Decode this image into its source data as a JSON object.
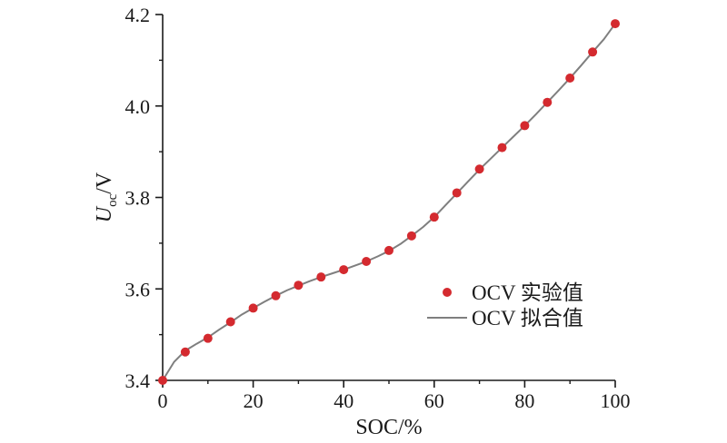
{
  "chart_data": {
    "type": "scatter",
    "xlabel": "SOC/%",
    "ylabel": {
      "main": "U",
      "sub": "oc",
      "unit": "/V"
    },
    "xlim": [
      0,
      100
    ],
    "ylim": [
      3.4,
      4.2
    ],
    "xticks": [
      0,
      20,
      40,
      60,
      80,
      100
    ],
    "yticks": [
      3.4,
      3.6,
      3.8,
      4.0,
      4.2
    ],
    "xtick_labels": [
      "0",
      "20",
      "40",
      "60",
      "80",
      "100"
    ],
    "ytick_labels": [
      "3.4",
      "3.6",
      "3.8",
      "4.0",
      "4.2"
    ],
    "grid": false,
    "legend_position": "center-right",
    "series": [
      {
        "name": "OCV 实验值",
        "kind": "scatter",
        "color": "#d42a2f",
        "x": [
          0,
          5,
          10,
          15,
          20,
          25,
          30,
          35,
          40,
          45,
          50,
          55,
          60,
          65,
          70,
          75,
          80,
          85,
          90,
          95,
          100
        ],
        "y": [
          3.4,
          3.462,
          3.492,
          3.528,
          3.558,
          3.585,
          3.608,
          3.626,
          3.642,
          3.66,
          3.684,
          3.716,
          3.757,
          3.81,
          3.862,
          3.909,
          3.957,
          4.008,
          4.061,
          4.118,
          4.18
        ]
      },
      {
        "name": "OCV 拟合值",
        "kind": "line",
        "color": "#7f7f7f",
        "x": [
          0,
          2.5,
          5,
          7.5,
          10,
          12.5,
          15,
          17.5,
          20,
          22.5,
          25,
          27.5,
          30,
          32.5,
          35,
          37.5,
          40,
          42.5,
          45,
          47.5,
          50,
          52.5,
          55,
          57.5,
          60,
          62.5,
          65,
          67.5,
          70,
          72.5,
          75,
          77.5,
          80,
          82.5,
          85,
          87.5,
          90,
          92.5,
          95,
          97.5,
          100
        ],
        "y": [
          3.4,
          3.44,
          3.465,
          3.48,
          3.494,
          3.511,
          3.527,
          3.544,
          3.558,
          3.572,
          3.585,
          3.597,
          3.607,
          3.617,
          3.626,
          3.634,
          3.642,
          3.651,
          3.66,
          3.671,
          3.683,
          3.698,
          3.716,
          3.735,
          3.757,
          3.783,
          3.809,
          3.835,
          3.861,
          3.885,
          3.909,
          3.933,
          3.957,
          3.982,
          4.008,
          4.034,
          4.061,
          4.089,
          4.118,
          4.146,
          4.18
        ]
      }
    ]
  }
}
